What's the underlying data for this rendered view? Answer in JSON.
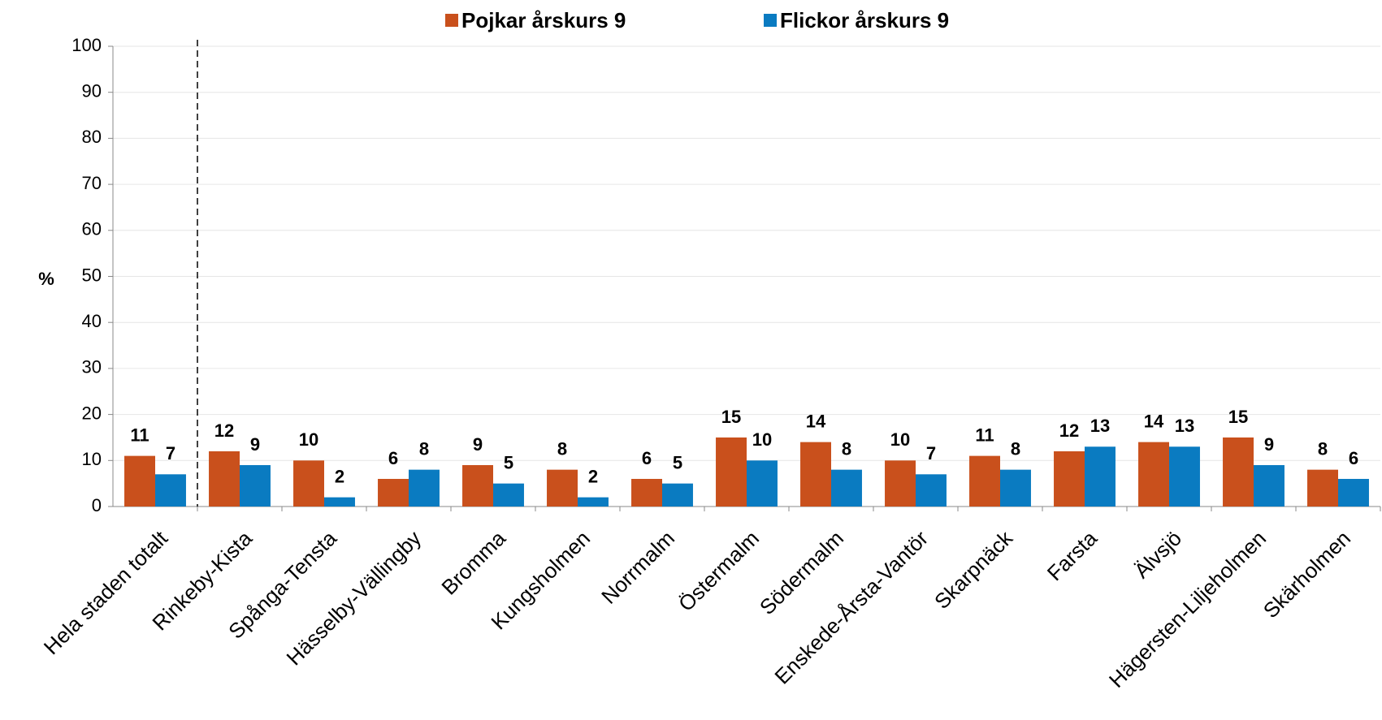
{
  "chart_data": {
    "type": "bar",
    "categories": [
      "Hela staden totalt",
      "Rinkeby-Kista",
      "Spånga-Tensta",
      "Hässelby-Vällingby",
      "Bromma",
      "Kungsholmen",
      "Norrmalm",
      "Östermalm",
      "Södermalm",
      "Enskede-Årsta-Vantör",
      "Skarpnäck",
      "Farsta",
      "Älvsjö",
      "Hägersten-Liljeholmen",
      "Skärholmen"
    ],
    "series": [
      {
        "name": "Pojkar årskurs 9",
        "color": "#c9501c",
        "values": [
          11,
          12,
          10,
          6,
          9,
          8,
          6,
          15,
          14,
          10,
          11,
          12,
          14,
          15,
          8
        ]
      },
      {
        "name": "Flickor årskurs 9",
        "color": "#0a7bc1",
        "values": [
          7,
          9,
          2,
          8,
          5,
          2,
          5,
          10,
          8,
          7,
          8,
          13,
          13,
          9,
          6
        ]
      }
    ],
    "ylabel": "%",
    "ylim": [
      0,
      100
    ],
    "yticks": [
      0,
      10,
      20,
      30,
      40,
      50,
      60,
      70,
      80,
      90,
      100
    ],
    "grid": true,
    "legend": "top"
  }
}
